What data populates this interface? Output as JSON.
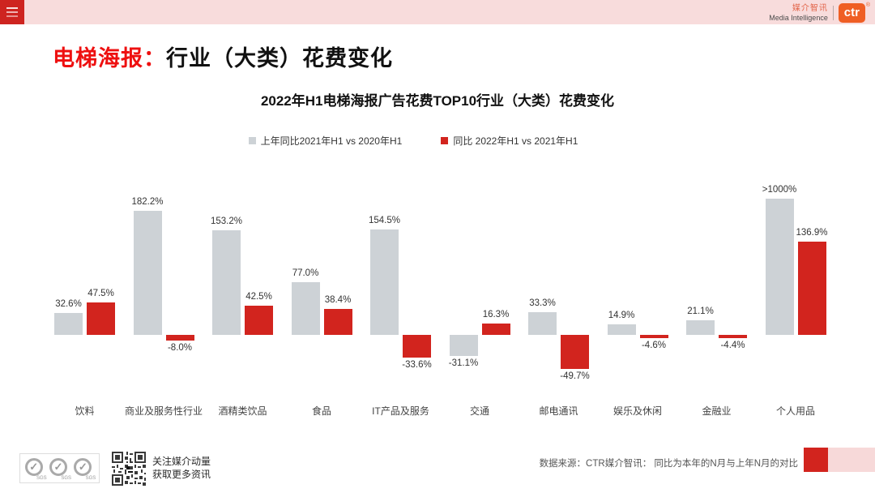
{
  "topbar": {
    "brand": {
      "cn": "媒介智讯",
      "en": "Media Intelligence",
      "logo": "ctr",
      "reg_mark": "®"
    }
  },
  "page_title": {
    "highlight": "电梯海报：",
    "rest": "行业（大类）花费变化"
  },
  "chart_data": {
    "type": "bar",
    "title": "2022年H1电梯海报广告花费TOP10行业（大类）花费变化",
    "categories": [
      "饮料",
      "商业及服务性行业",
      "酒精类饮品",
      "食品",
      "IT产品及服务",
      "交通",
      "邮电通讯",
      "娱乐及休闲",
      "金融业",
      "个人用品"
    ],
    "series": [
      {
        "name": "上年同比2021年H1 vs 2020年H1",
        "color": "#cdd2d6",
        "values": [
          32.6,
          182.2,
          153.2,
          77.0,
          154.5,
          -31.1,
          33.3,
          14.9,
          21.1,
          1000
        ],
        "labels": [
          "32.6%",
          "182.2%",
          "153.2%",
          "77.0%",
          "154.5%",
          "-31.1%",
          "33.3%",
          "14.9%",
          "21.1%",
          ">1000%"
        ]
      },
      {
        "name": "同比 2022年H1  vs 2021年H1",
        "color": "#d2241e",
        "values": [
          47.5,
          -8.0,
          42.5,
          38.4,
          -33.6,
          16.3,
          -49.7,
          -4.6,
          -4.4,
          136.9
        ],
        "labels": [
          "47.5%",
          "-8.0%",
          "42.5%",
          "38.4%",
          "-33.6%",
          "16.3%",
          "-49.7%",
          "-4.6%",
          "-4.4%",
          "136.9%"
        ]
      }
    ],
    "ylim": [
      -60,
      200
    ],
    "grid": false,
    "legend_position": "top",
    "value_label_suffix": "%",
    "note": "gray bar for 个人用品 exceeds scale (>1000%) and is clipped at plot top"
  },
  "footer": {
    "sgs_label": "SGS",
    "sgs_check": "✓",
    "qr_caption_line1": "关注媒介动量",
    "qr_caption_line2": "获取更多资讯",
    "source_text": "数据来源：CTR媒介智讯： 同比为本年的N月与上年N月的对比",
    "accent_red": "#d2241e",
    "accent_pink": "#f7d9d9"
  }
}
